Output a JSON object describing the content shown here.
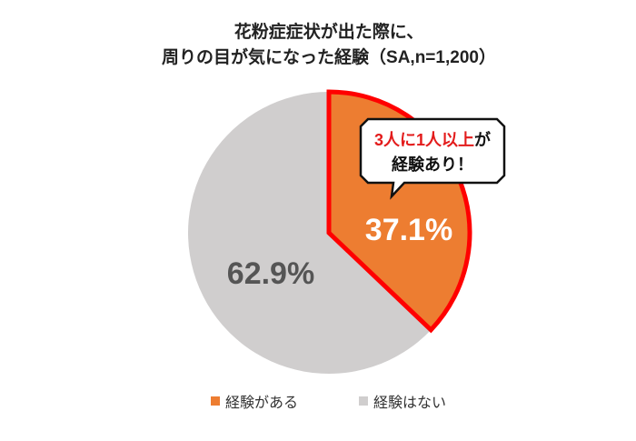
{
  "chart_data": {
    "type": "pie",
    "title_lines": [
      "花粉症症状が出た際に、",
      "周りの目が気になった経験（SA,n=1,200）"
    ],
    "slices": [
      {
        "name": "経験がある",
        "value": 37.1,
        "label": "37.1%",
        "color": "#ED7D31",
        "highlight_border": "#FF0000"
      },
      {
        "name": "経験はない",
        "value": 62.9,
        "label": "62.9%",
        "color": "#D0CECE"
      }
    ],
    "start": "top",
    "direction": "clockwise",
    "legend_position": "bottom",
    "callout": {
      "line1_red": "3人に1人以上",
      "line1_black": "が",
      "line2": "経験あり！"
    }
  }
}
